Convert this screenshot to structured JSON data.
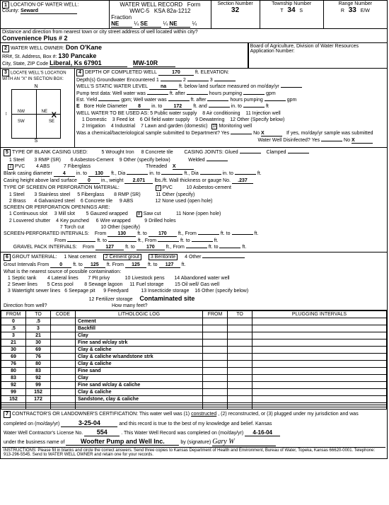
{
  "form": {
    "title": "WATER WELL RECORD",
    "form_no": "Form WWC-5",
    "ksa": "KSA 82a-1212"
  },
  "section1": {
    "label": "LOCATION OF WATER WELL:",
    "county_lbl": "County:",
    "county": "Seward",
    "fraction_lbl": "Fraction",
    "frac1": "NE",
    "q1": "¼",
    "frac2": "SE",
    "q2": "¼",
    "frac3": "NE",
    "q3": "¼",
    "sec_lbl": "Section Number",
    "sec": "32",
    "twp_lbl": "Township Number",
    "twp_t": "T",
    "twp": "34",
    "twp_s": "S",
    "rng_lbl": "Range Number",
    "rng_r": "R",
    "rng": "33",
    "rng_ew": "E/W",
    "dist_lbl": "Distance and direction from nearest town or city street address of well located within city?",
    "dist": "Convenience Plus # 2"
  },
  "section2": {
    "label": "WATER WELL OWNER:",
    "owner": "Don O'Kane",
    "addr_lbl": "RR#, St. Address, Box #:",
    "addr": "130 Pancake",
    "city_lbl": "City, State, ZIP Code",
    "city": "Liberal, Ks  67901",
    "well_id": "MW-10R",
    "board": "Board of Agriculture, Division of Water Resources",
    "app_lbl": "Application Number:"
  },
  "section3": {
    "label": "LOCATE WELL'S LOCATION WITH AN \"X\" IN SECTION BOX:"
  },
  "section4": {
    "label": "DEPTH OF COMPLETED WELL",
    "depth": "170",
    "depth_unit": "ft. ELEVATION:",
    "gw_lbl": "Depth(s) Groundwater Encountered",
    "gw1": "1",
    "gw2": "2",
    "gw3": "3",
    "swl_lbl": "WELL'S STATIC WATER LEVEL",
    "swl": "na",
    "swl_unit": "ft. below land surface measured on mo/day/yr",
    "pump_lbl": "Pump test data:   Well water was",
    "after_lbl": "ft. after",
    "hours_lbl": "hours pumping",
    "gpm_lbl": "gpm",
    "est_lbl": "Est. Yield",
    "est_gpm": "gpm;   Well water was",
    "bore_lbl": "Bore Hole Diameter",
    "bore1": "8",
    "bore_in": "in. to",
    "bore2": "172",
    "bore_ft": "ft. and",
    "bore_in2": "in. to",
    "bore_ft2": "ft",
    "use_lbl": "WELL WATER TO BE USED AS:",
    "u1": "1  Domestic",
    "u3": "3  Feed lot",
    "u5": "5  Public water supply",
    "u6": "6  Oil field water supply",
    "u8": "8  Air conditioning",
    "u9": "9  Dewatering",
    "u11": "11  Injection well",
    "u12": "12  Other (Specify below)",
    "u2": "2  Irrigation",
    "u4": "4  Industrial",
    "u7": "7  Lawn and garden (domestic)",
    "u10": "10",
    "u10b": "Monitoring well",
    "chem_lbl": "Was a chemical/bacteriological sample submitted to Department?  Yes",
    "chem_no": "No",
    "chem_x": "X",
    "chem2": "If yes, mo/day/yr sample was submitted",
    "disinf_lbl": "Water Well Disinfected?   Yes",
    "disinf_no": "No",
    "disinf_x": "X"
  },
  "section5": {
    "label": "TYPE OF BLANK CASING USED:",
    "c1": "1   Steel",
    "c2": "2",
    "c2b": "PVC",
    "c3": "3   RMP (SR)",
    "c4": "4   ABS",
    "c5": "5   Wrought Iron",
    "c6": "6   Asbestos-Cement",
    "c7": "7   Fiberglass",
    "c8": "8   Concrete tile",
    "c9": "9   Other (specify below)",
    "joints_lbl": "CASING JOINTS:   Glued",
    "clamped": "Clamped",
    "welded": "Welded",
    "threaded": "Threaded",
    "th_x": "X",
    "bcd_lbl": "Blank casing diameter",
    "bcd": "4",
    "bcd_in": "in. to",
    "bcd2": "130",
    "bcd_ft": "ft., Dia",
    "bcd_in2": "in. to",
    "bcd_ft2": "ft., Dia",
    "bcd_in3": "in. to",
    "bcd_ft3": "ft.",
    "cht_lbl": "Casing height above land surface",
    "cht": "0",
    "cht_in": "in., weight",
    "cht_w": "2.071",
    "cht_wu": "lbs./ft.  Wall thickness or gauge No.",
    "cht_g": ".237",
    "perf_lbl": "TYPE OF SCREEN OR PERFORATION MATERIAL:",
    "p1": "1   Steel",
    "p2": "2   Brass",
    "p3": "3   Stainless steel",
    "p4": "4   Galvanized steel",
    "p5": "5   Fiberglass",
    "p6": "6   Concrete tile",
    "p7": "7",
    "p7b": "PVC",
    "p8": "8   RMP (SR)",
    "p9": "9   ABS",
    "p10": "10   Asbestos-cement",
    "p11": "11   Other (specify)",
    "p12": "12   None used (open hole)",
    "open_lbl": "SCREEN OR PERFORATION OPENINGS ARE:",
    "o1": "1   Continuous slot",
    "o2": "2   Louvered shutter",
    "o3": "3   Mill slot",
    "o4": "4   Key punched",
    "o5": "5   Gauzed wrapped",
    "o6": "6   Wire wrapped",
    "o7": "7   Torch cut",
    "o8": "8",
    "o8b": "Saw cut",
    "o9": "9   Drilled holes",
    "o10": "10   Other (specify)",
    "o11": "11   None (open hole)",
    "spi_lbl": "SCREEN-PERFORATED INTERVALS:",
    "from": "From",
    "to": "ft. to",
    "ft": "ft., From",
    "spi1f": "130",
    "spi1t": "170",
    "gpi_lbl": "GRAVEL PACK INTERVALS:",
    "gpi1f": "127",
    "gpi1t": "170"
  },
  "section6": {
    "label": "GROUT MATERIAL:",
    "g1": "1  Neat cement",
    "g2": "2  Cement grout",
    "g3": "3  Bentonite",
    "g4": "4  Other",
    "gi_lbl": "Grout Intervals   From",
    "gi1f": "0",
    "gi1t": "125",
    "gi2f": "125",
    "gi2t": "127",
    "cont_lbl": "What is the nearest source of possible contamination:",
    "s1": "1   Septic tank",
    "s2": "2   Sewer lines",
    "s3": "3   Watertight sewer lines",
    "s4": "4   Lateral lines",
    "s5": "5   Cess pool",
    "s6": "6   Seepage pit",
    "s7": "7   Pit privy",
    "s8": "8   Sewage lagoon",
    "s9": "9   Feedyard",
    "s10": "10   Livestock pens",
    "s11": "11   Fuel storage",
    "s12": "12   Fertilizer storage",
    "s13": "13   Insecticide storage",
    "s14": "14   Abandoned water well",
    "s15": "15   Oil well/ Gas well",
    "s16": "16   Other (specify below)",
    "s16b": "Contaminated site",
    "dir_lbl": "Direction from well?",
    "howmany": "How many feet?"
  },
  "log": {
    "h1": "FROM",
    "h2": "TO",
    "h3": "CODE",
    "h4": "LITHOLOGIC LOG",
    "h5": "FROM",
    "h6": "TO",
    "h7": "PLUGGING INTERVALS",
    "rows": [
      {
        "f": "0",
        "t": ".5",
        "d": "Cement"
      },
      {
        "f": ".5",
        "t": "3",
        "d": "Backfill"
      },
      {
        "f": "3",
        "t": "21",
        "d": "Clay"
      },
      {
        "f": "21",
        "t": "30",
        "d": "Fine sand w/clay strk"
      },
      {
        "f": "30",
        "t": "69",
        "d": "Clay & caliche"
      },
      {
        "f": "69",
        "t": "76",
        "d": "Clay & caliche w/sandstone strk"
      },
      {
        "f": "76",
        "t": "80",
        "d": "Clay & caliche"
      },
      {
        "f": "80",
        "t": "83",
        "d": "Fine sand"
      },
      {
        "f": "83",
        "t": "92",
        "d": "Clay"
      },
      {
        "f": "92",
        "t": "99",
        "d": "Fine sand w/clay & caliche"
      },
      {
        "f": "99",
        "t": "152",
        "d": "Clay & caliche"
      },
      {
        "f": "152",
        "t": "172",
        "d": "Sandstone, clay & caliche"
      }
    ]
  },
  "section7": {
    "cert": "CONTRACTOR'S OR LANDOWNER'S CERTIFICATION:  This water well was (1)",
    "u1": "constructed",
    "cert2": ", (2) reconstructed, or (3) plugged under my jurisdiction and was",
    "comp_lbl": "completed on (mo/day/yr)",
    "comp": "3-25-04",
    "cert3": "and this record is true to the best of my knowledge and belief.  Kansas",
    "lic_lbl": "Water Well Contractor's License No.",
    "lic": "554",
    "cert4": ".  This Water Well Record was completed on (mo/day/yr)",
    "date2": "4-16-04",
    "bus_lbl": "under the business name of",
    "bus": "Woofter Pump and Well Inc.",
    "sig_lbl": "by (signature)",
    "instr": "INSTRUCTIONS:  Please fill in blanks and circle the correct answers.  Send three copies to Kansas Department of Health and Environment, Bureau of Water, Topeka, Kansas 66620-0001.  Telephone:  913-296-5545.  Send to WATER WELL OWNER and retain one for your records."
  },
  "E": "E"
}
